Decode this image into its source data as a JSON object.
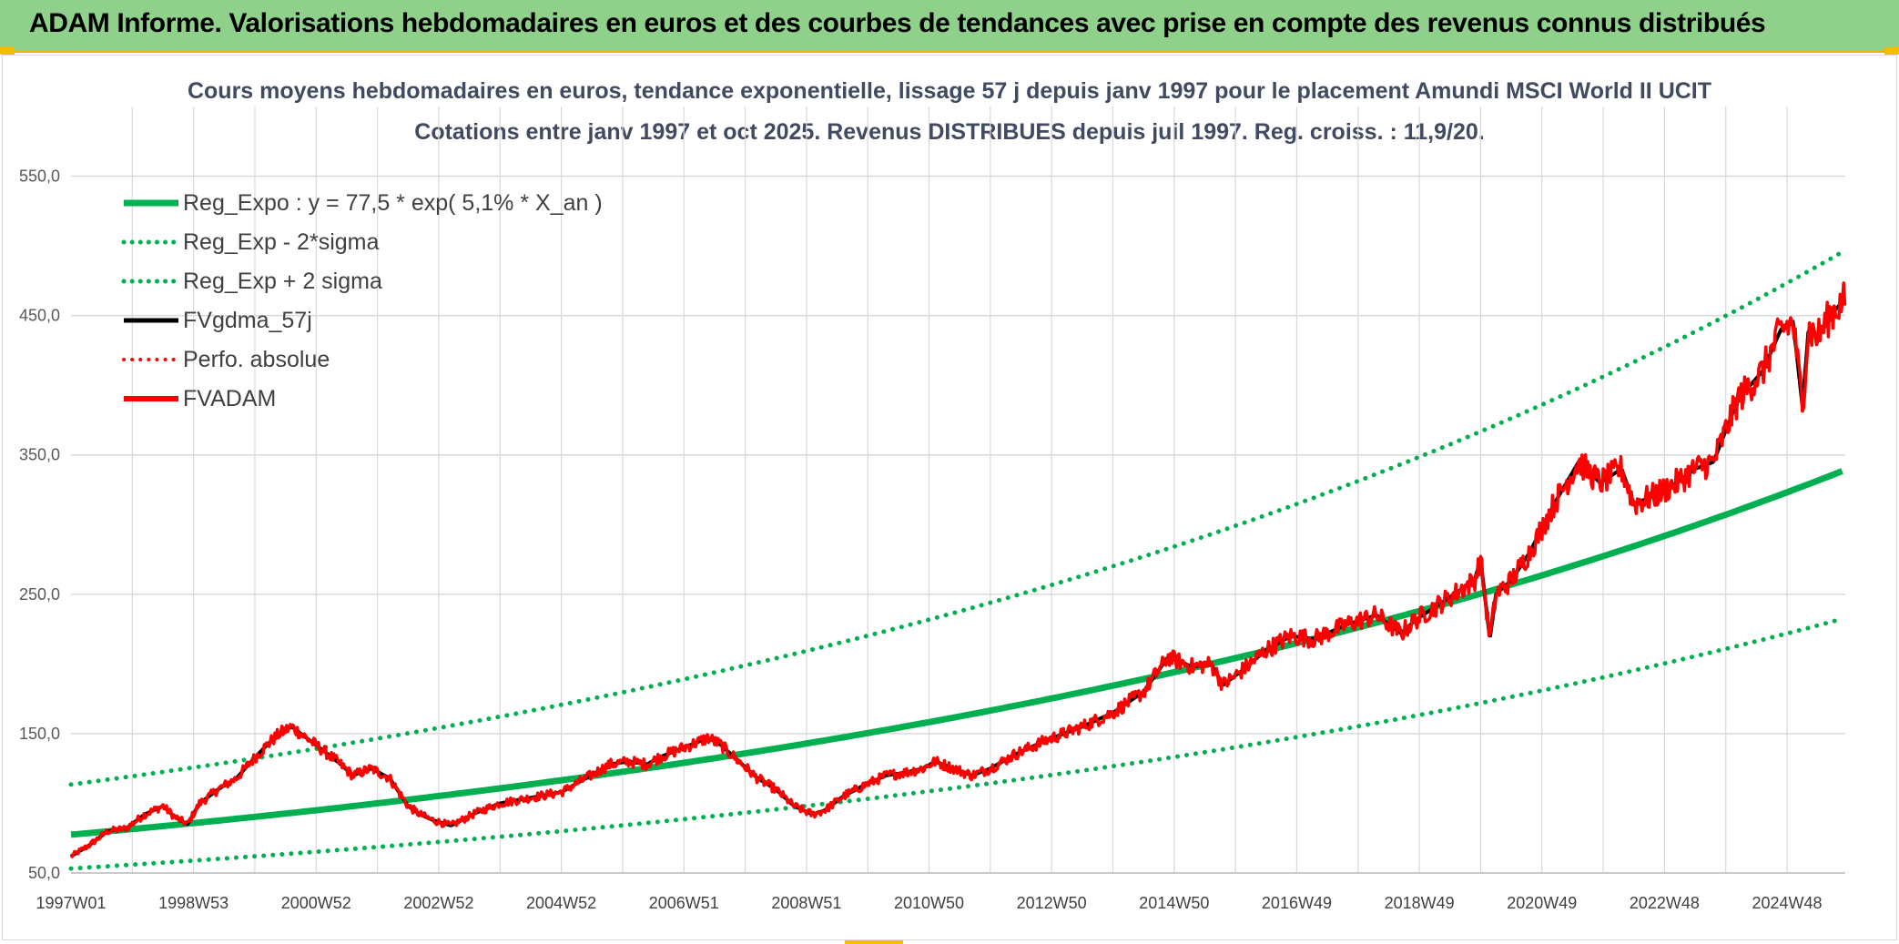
{
  "header": {
    "title": "ADAM Informe. Valorisations hebdomadaires en euros et des courbes de tendances avec prise en compte des revenus connus distribués"
  },
  "colors": {
    "banner": "#8fd18a",
    "reg_expo": "#00b050",
    "fvgdma": "#000000",
    "fvadam": "#ff0000",
    "perfo": "#ff0000",
    "grid": "#d9d9d9"
  },
  "chart_data": {
    "type": "line",
    "title": "Cours moyens hebdomadaires en euros, tendance exponentielle, lissage 57 j depuis janv 1997 pour le placement Amundi MSCI World II UCIT",
    "subtitle": "Cotations entre janv 1997 et oct 2025. Revenus DISTRIBUES depuis juil 1997. Reg. croiss. : 11,9/20.",
    "ylim": [
      50,
      600
    ],
    "yticks": [
      "50,0",
      "150,0",
      "250,0",
      "350,0",
      "450,0",
      "550,0"
    ],
    "ytick_values": [
      50,
      150,
      250,
      350,
      450,
      550
    ],
    "xlim": [
      1997.0,
      2025.95
    ],
    "xticks": [
      "1997W01",
      "1998W53",
      "2000W52",
      "2002W52",
      "2004W52",
      "2006W51",
      "2008W51",
      "2010W50",
      "2012W50",
      "2014W50",
      "2016W49",
      "2018W49",
      "2020W49",
      "2022W48",
      "2024W48"
    ],
    "xtick_values": [
      1997.0,
      1999.0,
      2001.0,
      2003.0,
      2005.0,
      2007.0,
      2009.0,
      2011.0,
      2013.0,
      2015.0,
      2017.0,
      2019.0,
      2021.0,
      2023.0,
      2025.0
    ],
    "grid": true,
    "legend_position": "top-left",
    "series": [
      {
        "name": "Reg_Expo : y = 77,5 * exp( 5,1% *  X_an )",
        "style": "solid",
        "color": "#00b050",
        "x": [
          1997.0,
          2025.95
        ],
        "formula": "77.5*exp(0.051*(x-1997))"
      },
      {
        "name": "Reg_Exp - 2*sigma",
        "style": "dotted",
        "color": "#00b050",
        "x": [
          1997.0,
          2025.95
        ],
        "formula": "53.2*exp(0.051*(x-1997))"
      },
      {
        "name": "Reg_Exp + 2 sigma",
        "style": "dotted",
        "color": "#00b050",
        "x": [
          1997.0,
          2025.95
        ],
        "formula": "113.5*exp(0.051*(x-1997))"
      },
      {
        "name": "FVgdma_57j",
        "style": "solid",
        "color": "#000000"
      },
      {
        "name": "Perfo. absolue",
        "style": "dotted",
        "color": "#ff0000"
      },
      {
        "name": "FVADAM",
        "style": "solid",
        "color": "#ff0000",
        "x": [
          1997.0,
          1997.3,
          1997.6,
          1997.9,
          1998.2,
          1998.5,
          1998.7,
          1998.9,
          1999.1,
          1999.4,
          1999.7,
          1999.9,
          2000.2,
          2000.4,
          2000.6,
          2000.9,
          2001.2,
          2001.4,
          2001.6,
          2001.9,
          2002.2,
          2002.5,
          2002.7,
          2002.9,
          2003.2,
          2003.6,
          2004.0,
          2004.5,
          2005.0,
          2005.4,
          2005.8,
          2006.1,
          2006.4,
          2006.6,
          2007.0,
          2007.4,
          2007.6,
          2007.9,
          2008.2,
          2008.5,
          2008.8,
          2009.1,
          2009.3,
          2009.6,
          2009.9,
          2010.3,
          2010.6,
          2010.9,
          2011.1,
          2011.4,
          2011.7,
          2012.0,
          2012.4,
          2012.9,
          2013.5,
          2014.0,
          2014.5,
          2014.9,
          2015.3,
          2015.6,
          2015.8,
          2016.1,
          2016.5,
          2016.9,
          2017.3,
          2017.8,
          2018.3,
          2018.7,
          2018.95,
          2019.4,
          2019.9,
          2020.0,
          2020.15,
          2020.25,
          2020.5,
          2020.8,
          2021.2,
          2021.6,
          2021.95,
          2022.3,
          2022.5,
          2022.8,
          2023.2,
          2023.5,
          2023.8,
          2024.2,
          2024.6,
          2024.9,
          2025.1,
          2025.25,
          2025.35,
          2025.5,
          2025.7,
          2025.95
        ],
        "values": [
          62,
          70,
          80,
          82,
          92,
          98,
          90,
          85,
          100,
          110,
          118,
          128,
          142,
          150,
          155,
          145,
          135,
          128,
          120,
          125,
          118,
          98,
          92,
          88,
          84,
          93,
          100,
          104,
          108,
          118,
          128,
          130,
          128,
          133,
          140,
          147,
          142,
          130,
          118,
          110,
          98,
          92,
          95,
          105,
          112,
          120,
          122,
          125,
          130,
          125,
          120,
          125,
          135,
          145,
          155,
          165,
          180,
          205,
          198,
          200,
          185,
          195,
          210,
          220,
          218,
          228,
          235,
          222,
          232,
          245,
          260,
          275,
          218,
          250,
          260,
          280,
          315,
          345,
          330,
          340,
          315,
          320,
          330,
          340,
          345,
          390,
          410,
          440,
          445,
          385,
          440,
          435,
          450,
          462
        ]
      }
    ]
  }
}
